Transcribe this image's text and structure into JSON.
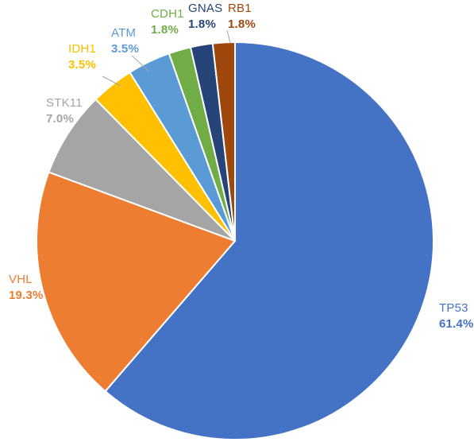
{
  "chart_data": {
    "type": "pie",
    "title": "",
    "start": "12 o'clock",
    "direction": "clockwise",
    "slices": [
      {
        "label": "TP53",
        "value": 61.4,
        "display": "61.4%",
        "color": "#4472C4"
      },
      {
        "label": "VHL",
        "value": 19.3,
        "display": "19.3%",
        "color": "#ED7D31"
      },
      {
        "label": "STK11",
        "value": 7.0,
        "display": "7.0%",
        "color": "#A5A5A5"
      },
      {
        "label": "IDH1",
        "value": 3.5,
        "display": "3.5%",
        "color": "#FFC000"
      },
      {
        "label": "ATM",
        "value": 3.5,
        "display": "3.5%",
        "color": "#5B9BD5"
      },
      {
        "label": "CDH1",
        "value": 1.8,
        "display": "1.8%",
        "color": "#70AD47"
      },
      {
        "label": "GNAS",
        "value": 1.8,
        "display": "1.8%",
        "color": "#264478"
      },
      {
        "label": "RB1",
        "value": 1.8,
        "display": "1.8%",
        "color": "#9E480E"
      }
    ]
  }
}
